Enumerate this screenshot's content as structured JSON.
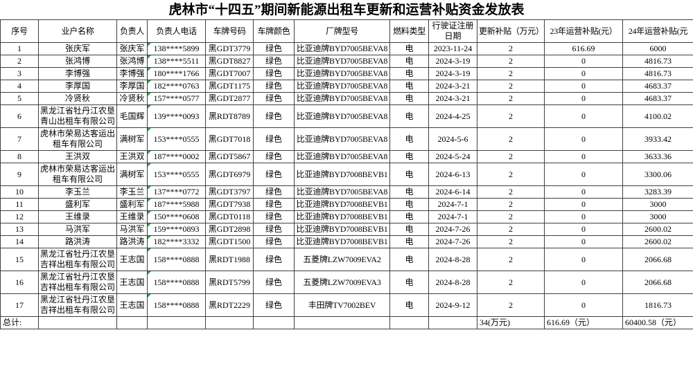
{
  "title": "虎林市“十四五”期间新能源出租车更新和运营补贴资金发放表",
  "table": {
    "headers": [
      "序号",
      "业户名称",
      "负责人",
      "负责人电话",
      "车牌号码",
      "车牌颜色",
      "厂牌型号",
      "燃料类型",
      "行驶证注册日期",
      "更新补贴（万元）",
      "23年运营补贴(元）",
      "24年运营补贴(元"
    ],
    "rows": [
      {
        "serial": "1",
        "owner": "张庆军",
        "person": "张庆军",
        "phone": "138****5899",
        "plate": "黑GDT3779",
        "color": "绿色",
        "model": "比亚迪牌BYD7005BEVA8",
        "fuel": "电",
        "date": "2023-11-24",
        "renew": "2",
        "sub23": "616.69",
        "sub24": "6000"
      },
      {
        "serial": "2",
        "owner": "张鸿博",
        "person": "张鸿博",
        "phone": "138****5511",
        "plate": "黑GDT8827",
        "color": "绿色",
        "model": "比亚迪牌BYD7005BEVA8",
        "fuel": "电",
        "date": "2024-3-19",
        "renew": "2",
        "sub23": "0",
        "sub24": "4816.73"
      },
      {
        "serial": "3",
        "owner": "李博强",
        "person": "李博强",
        "phone": "180****1766",
        "plate": "黑GDT7007",
        "color": "绿色",
        "model": "比亚迪牌BYD7005BEVA8",
        "fuel": "电",
        "date": "2024-3-19",
        "renew": "2",
        "sub23": "0",
        "sub24": "4816.73"
      },
      {
        "serial": "4",
        "owner": "李厚国",
        "person": "李厚国",
        "phone": "182****0763",
        "plate": "黑GDT1175",
        "color": "绿色",
        "model": "比亚迪牌BYD7005BEVA8",
        "fuel": "电",
        "date": "2024-3-21",
        "renew": "2",
        "sub23": "0",
        "sub24": "4683.37"
      },
      {
        "serial": "5",
        "owner": "冷贤秋",
        "person": "冷贤秋",
        "phone": "157****0577",
        "plate": "黑GDT2877",
        "color": "绿色",
        "model": "比亚迪牌BYD7005BEVA8",
        "fuel": "电",
        "date": "2024-3-21",
        "renew": "2",
        "sub23": "0",
        "sub24": "4683.37"
      },
      {
        "serial": "6",
        "owner": "黑龙江省牡丹江农垦青山出租车有限公司",
        "person": "毛国辉",
        "phone": "139****0093",
        "plate": "黑RDT8789",
        "color": "绿色",
        "model": "比亚迪牌BYD7005BEVA8",
        "fuel": "电",
        "date": "2024-4-25",
        "renew": "2",
        "sub23": "0",
        "sub24": "4100.02"
      },
      {
        "serial": "7",
        "owner": "虎林市荣易达客运出租车有限公司",
        "person": "满树军",
        "phone": "153****0555",
        "plate": "黑GDT7018",
        "color": "绿色",
        "model": "比亚迪牌BYD7005BEVA8",
        "fuel": "电",
        "date": "2024-5-6",
        "renew": "2",
        "sub23": "0",
        "sub24": "3933.42"
      },
      {
        "serial": "8",
        "owner": "王洪双",
        "person": "王洪双",
        "phone": "187****0002",
        "plate": "黑GDT5867",
        "color": "绿色",
        "model": "比亚迪牌BYD7005BEVA8",
        "fuel": "电",
        "date": "2024-5-24",
        "renew": "2",
        "sub23": "0",
        "sub24": "3633.36"
      },
      {
        "serial": "9",
        "owner": "虎林市荣易达客运出租车有限公司",
        "person": "满树军",
        "phone": "153****0555",
        "plate": "黑GDT6979",
        "color": "绿色",
        "model": "比亚迪牌BYD7008BEVB1",
        "fuel": "电",
        "date": "2024-6-13",
        "renew": "2",
        "sub23": "0",
        "sub24": "3300.06"
      },
      {
        "serial": "10",
        "owner": "李玉兰",
        "person": "李玉兰",
        "phone": "137****0772",
        "plate": "黑GDT3797",
        "color": "绿色",
        "model": "比亚迪牌BYD7005BEVA8",
        "fuel": "电",
        "date": "2024-6-14",
        "renew": "2",
        "sub23": "0",
        "sub24": "3283.39"
      },
      {
        "serial": "11",
        "owner": "盛利军",
        "person": "盛利军",
        "phone": "187****5988",
        "plate": "黑GDT7938",
        "color": "绿色",
        "model": "比亚迪牌BYD7008BEVB1",
        "fuel": "电",
        "date": "2024-7-1",
        "renew": "2",
        "sub23": "0",
        "sub24": "3000"
      },
      {
        "serial": "12",
        "owner": "王维录",
        "person": "王维录",
        "phone": "150****0608",
        "plate": "黑GDT0118",
        "color": "绿色",
        "model": "比亚迪牌BYD7008BEVB1",
        "fuel": "电",
        "date": "2024-7-1",
        "renew": "2",
        "sub23": "0",
        "sub24": "3000"
      },
      {
        "serial": "13",
        "owner": "马洪军",
        "person": "马洪军",
        "phone": "159****0893",
        "plate": "黑GDT2898",
        "color": "绿色",
        "model": "比亚迪牌BYD7008BEVB1",
        "fuel": "电",
        "date": "2024-7-26",
        "renew": "2",
        "sub23": "0",
        "sub24": "2600.02"
      },
      {
        "serial": "14",
        "owner": "路洪涛",
        "person": "路洪涛",
        "phone": "182****3332",
        "plate": "黑GDT1500",
        "color": "绿色",
        "model": "比亚迪牌BYD7008BEVB1",
        "fuel": "电",
        "date": "2024-7-26",
        "renew": "2",
        "sub23": "0",
        "sub24": "2600.02"
      },
      {
        "serial": "15",
        "owner": "黑龙江省牡丹江农垦吉祥出租车有限公司",
        "person": "王志国",
        "phone": "158****0888",
        "plate": "黑RDT1988",
        "color": "绿色",
        "model": "五菱牌LZW7009EVA2",
        "fuel": "电",
        "date": "2024-8-28",
        "renew": "2",
        "sub23": "0",
        "sub24": "2066.68"
      },
      {
        "serial": "16",
        "owner": "黑龙江省牡丹江农垦吉祥出租车有限公司",
        "person": "王志国",
        "phone": "158****0888",
        "plate": "黑RDT5799",
        "color": "绿色",
        "model": "五菱牌LZW7009EVA3",
        "fuel": "电",
        "date": "2024-8-28",
        "renew": "2",
        "sub23": "0",
        "sub24": "2066.68"
      },
      {
        "serial": "17",
        "owner": "黑龙江省牡丹江农垦吉祥出租车有限公司",
        "person": "王志国",
        "phone": "158****0888",
        "plate": "黑RDT2229",
        "color": "绿色",
        "model": "丰田牌TV7002BEV",
        "fuel": "电",
        "date": "2024-9-12",
        "renew": "2",
        "sub23": "0",
        "sub24": "1816.73"
      }
    ],
    "total": {
      "label": "总计:",
      "renew": "34(万元)",
      "sub23": "616.69（元）",
      "sub24": "60400.58（元）"
    }
  },
  "colors": {
    "comment_marker_green": "#2f9e4c",
    "grid_border": "#3f3f3f"
  }
}
